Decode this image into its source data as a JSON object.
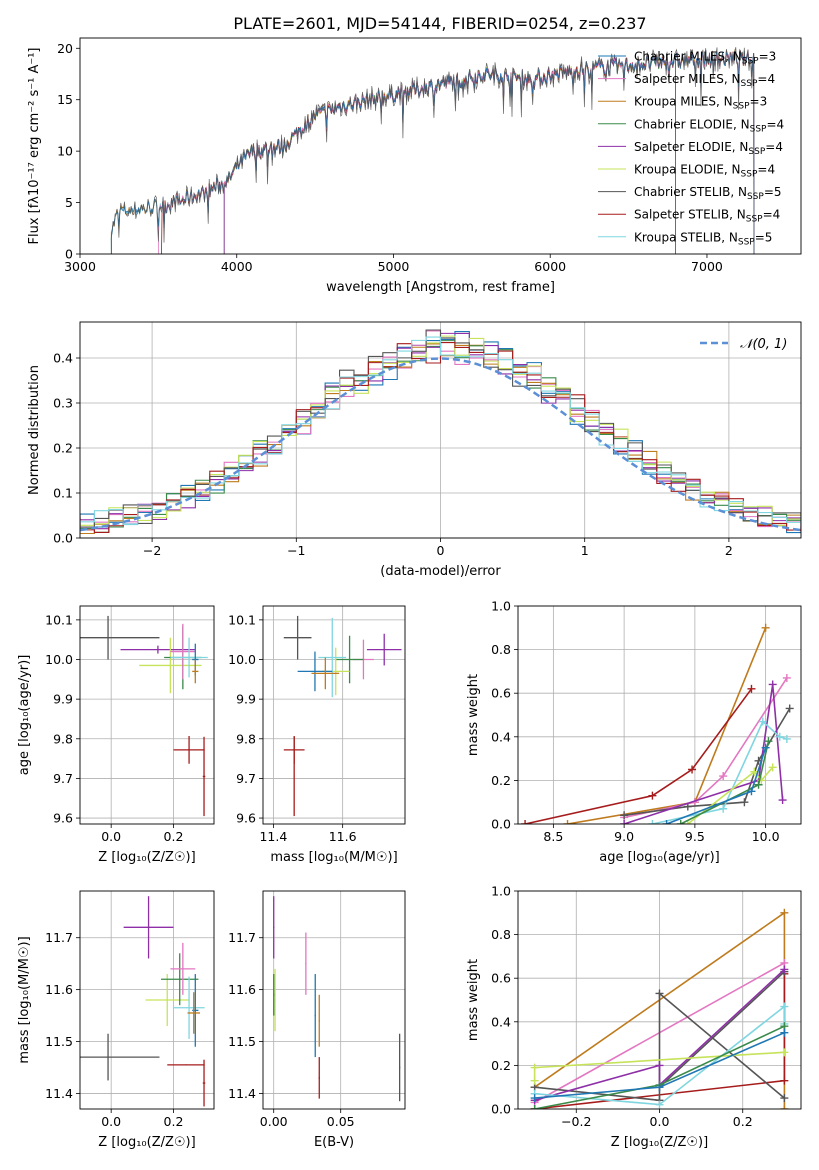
{
  "figure_title": "PLATE=2601, MJD=54144, FIBERID=0254, z=0.237",
  "colors": {
    "CM": "#1f77b4",
    "SM": "#e377c2",
    "KM": "#bf7b1d",
    "CE": "#3a8a4a",
    "SE": "#8e2fa8",
    "KE": "#c6e35a",
    "CS": "#555555",
    "SS": "#a61c1c",
    "KS": "#7fd6e0",
    "normal": "#5b8fd6",
    "grid": "#b0b0b0",
    "text": "#000000"
  },
  "legend_models": [
    {
      "key": "CM",
      "imf": "Chabrier",
      "lib": "MILES",
      "nssp": "3"
    },
    {
      "key": "SM",
      "imf": "Salpeter",
      "lib": "MILES",
      "nssp": "4"
    },
    {
      "key": "KM",
      "imf": "Kroupa",
      "lib": "MILES",
      "nssp": "3"
    },
    {
      "key": "CE",
      "imf": "Chabrier",
      "lib": "ELODIE",
      "nssp": "4"
    },
    {
      "key": "SE",
      "imf": "Salpeter",
      "lib": "ELODIE",
      "nssp": "4"
    },
    {
      "key": "KE",
      "imf": "Kroupa",
      "lib": "ELODIE",
      "nssp": "4"
    },
    {
      "key": "CS",
      "imf": "Chabrier",
      "lib": "STELIB",
      "nssp": "5"
    },
    {
      "key": "SS",
      "imf": "Salpeter",
      "lib": "STELIB",
      "nssp": "4"
    },
    {
      "key": "KS",
      "imf": "Kroupa",
      "lib": "STELIB",
      "nssp": "5"
    }
  ],
  "chart_data": [
    {
      "id": "spectrum",
      "type": "line",
      "xlabel": "wavelength [Angstrom, rest frame]",
      "ylabel": "Flux [fλ10⁻¹⁷ erg cm⁻² s⁻¹ A⁻¹]",
      "xlim": [
        3000,
        7600
      ],
      "ylim": [
        0,
        21
      ],
      "xticks": [
        3000,
        4000,
        5000,
        6000,
        7000
      ],
      "yticks": [
        0,
        5,
        10,
        15,
        20
      ],
      "grid": false,
      "legend": "upper right",
      "series_start": {
        "CM": 3200,
        "SM": 3500,
        "KM": 3200,
        "CE": 3920,
        "SE": 3920,
        "KE": 3920,
        "CS": 3200,
        "SS": 3520,
        "KS": 3200
      },
      "series_end": {
        "CM": 7300,
        "SM": 7300,
        "KM": 7300,
        "CE": 6800,
        "SE": 6800,
        "KE": 6800,
        "CS": 7300,
        "SS": 7300,
        "KS": 7300
      },
      "continuum": [
        [
          3200,
          2.5
        ],
        [
          3250,
          4.2
        ],
        [
          3400,
          4.4
        ],
        [
          3600,
          5.0
        ],
        [
          3800,
          6.0
        ],
        [
          3950,
          7.2
        ],
        [
          4000,
          8.5
        ],
        [
          4100,
          10.0
        ],
        [
          4300,
          10.5
        ],
        [
          4500,
          13.5
        ],
        [
          4700,
          14.5
        ],
        [
          5000,
          15.5
        ],
        [
          5300,
          16.5
        ],
        [
          5600,
          17.5
        ],
        [
          5900,
          17.0
        ],
        [
          6200,
          18.0
        ],
        [
          6600,
          18.5
        ],
        [
          7000,
          19.0
        ],
        [
          7300,
          19.0
        ]
      ]
    },
    {
      "id": "residuals",
      "type": "histogram",
      "xlabel": "(data-model)/error",
      "ylabel": "Normed distribution",
      "xlim": [
        -2.5,
        2.5
      ],
      "ylim": [
        0,
        0.48
      ],
      "xticks": [
        -2,
        -1,
        0,
        1,
        2
      ],
      "yticks": [
        0.0,
        0.1,
        0.2,
        0.3,
        0.4
      ],
      "grid": true,
      "legend": "upper right",
      "reference_curve": {
        "name": "𝒩(0, 1)",
        "type": "gaussian",
        "mean": 0,
        "sigma": 1
      },
      "bin_width": 0.1
    },
    {
      "id": "age_vs_Z",
      "type": "errorbar",
      "xlabel": "Z [log₁₀(Z/Z☉)]",
      "ylabel": "age  [log₁₀(age/yr)]",
      "xlim": [
        -0.1,
        0.33
      ],
      "ylim": [
        9.585,
        10.135
      ],
      "xticks": [
        0.0,
        0.2
      ],
      "yticks": [
        9.6,
        9.7,
        9.8,
        9.9,
        10.0,
        10.1
      ],
      "grid": true,
      "points": [
        {
          "key": "CS",
          "x": -0.01,
          "y": 10.055,
          "xerr": 0.165,
          "yerr": 0.055
        },
        {
          "key": "SE",
          "x": 0.15,
          "y": 10.025,
          "xerr": 0.12,
          "yerr": 0.01
        },
        {
          "key": "KE",
          "x": 0.19,
          "y": 9.985,
          "xerr": 0.1,
          "yerr": 0.07
        },
        {
          "key": "CE",
          "x": 0.23,
          "y": 10.005,
          "xerr": 0.06,
          "yerr": 0.08
        },
        {
          "key": "SM",
          "x": 0.23,
          "y": 10.02,
          "xerr": 0.04,
          "yerr": 0.07
        },
        {
          "key": "KS",
          "x": 0.25,
          "y": 10.005,
          "xerr": 0.06,
          "yerr": 0.05
        },
        {
          "key": "CM",
          "x": 0.27,
          "y": 10.0,
          "xerr": 0.01,
          "yerr": 0.04
        },
        {
          "key": "KM",
          "x": 0.27,
          "y": 9.97,
          "xerr": 0.01,
          "yerr": 0.03
        },
        {
          "key": "SS",
          "x": 0.25,
          "y": 9.772,
          "xerr": 0.05,
          "yerr": 0.035
        },
        {
          "key": "SS",
          "x": 0.298,
          "y": 9.705,
          "xerr": 0.004,
          "yerr": 0.1
        }
      ]
    },
    {
      "id": "age_vs_mass",
      "type": "errorbar",
      "xlabel": "mass [log₁₀(M/M☉)]",
      "ylabel": "",
      "xlim": [
        11.37,
        11.78
      ],
      "ylim": [
        9.585,
        10.135
      ],
      "xticks": [
        11.4,
        11.6
      ],
      "yticks": [
        9.6,
        9.7,
        9.8,
        9.9,
        10.0,
        10.1
      ],
      "grid": true,
      "points": [
        {
          "key": "CS",
          "x": 11.47,
          "y": 10.055,
          "xerr": 0.04,
          "yerr": 0.055
        },
        {
          "key": "SE",
          "x": 11.72,
          "y": 10.025,
          "xerr": 0.05,
          "yerr": 0.04
        },
        {
          "key": "SM",
          "x": 11.66,
          "y": 10.0,
          "xerr": 0.03,
          "yerr": 0.05
        },
        {
          "key": "CE",
          "x": 11.62,
          "y": 10.0,
          "xerr": 0.04,
          "yerr": 0.06
        },
        {
          "key": "KE",
          "x": 11.58,
          "y": 9.97,
          "xerr": 0.04,
          "yerr": 0.06
        },
        {
          "key": "KS",
          "x": 11.57,
          "y": 10.005,
          "xerr": 0.04,
          "yerr": 0.1
        },
        {
          "key": "CM",
          "x": 11.52,
          "y": 9.97,
          "xerr": 0.05,
          "yerr": 0.05
        },
        {
          "key": "KM",
          "x": 11.55,
          "y": 9.965,
          "xerr": 0.04,
          "yerr": 0.04
        },
        {
          "key": "SS",
          "x": 11.46,
          "y": 9.772,
          "xerr": 0.03,
          "yerr": 0.035
        },
        {
          "key": "SS",
          "x": 11.46,
          "y": 9.705,
          "xerr": 0.001,
          "yerr": 0.1
        }
      ]
    },
    {
      "id": "weight_vs_age",
      "type": "line",
      "xlabel": "age  [log₁₀(age/yr)]",
      "ylabel": "mass weight",
      "xlim": [
        8.25,
        10.25
      ],
      "ylim": [
        0,
        1.0
      ],
      "xticks": [
        8.5,
        9.0,
        9.5,
        10.0
      ],
      "yticks": [
        0.0,
        0.2,
        0.4,
        0.6,
        0.8,
        1.0
      ],
      "grid": true,
      "series": [
        {
          "key": "KM",
          "x": [
            8.6,
            9.5,
            10.0
          ],
          "y": [
            0.0,
            0.1,
            0.9
          ]
        },
        {
          "key": "SS",
          "x": [
            8.3,
            9.2,
            9.48,
            9.9
          ],
          "y": [
            0.0,
            0.13,
            0.25,
            0.62
          ]
        },
        {
          "key": "SM",
          "x": [
            9.0,
            9.5,
            9.7,
            10.15
          ],
          "y": [
            0.03,
            0.1,
            0.22,
            0.67
          ]
        },
        {
          "key": "CS",
          "x": [
            9.0,
            9.45,
            9.85,
            9.95,
            10.17
          ],
          "y": [
            0.04,
            0.08,
            0.1,
            0.29,
            0.53
          ]
        },
        {
          "key": "SE",
          "x": [
            9.0,
            9.95,
            10.05,
            10.12
          ],
          "y": [
            0.0,
            0.2,
            0.64,
            0.11
          ]
        },
        {
          "key": "KS",
          "x": [
            9.2,
            9.7,
            9.98,
            10.1,
            10.15
          ],
          "y": [
            0.0,
            0.07,
            0.47,
            0.4,
            0.39
          ]
        },
        {
          "key": "KE",
          "x": [
            9.45,
            9.92,
            9.97,
            10.05
          ],
          "y": [
            0.0,
            0.24,
            0.2,
            0.26
          ]
        },
        {
          "key": "CE",
          "x": [
            9.4,
            9.95,
            10.02
          ],
          "y": [
            0.0,
            0.18,
            0.38
          ]
        },
        {
          "key": "CM",
          "x": [
            9.3,
            9.9,
            10.0
          ],
          "y": [
            0.0,
            0.15,
            0.35
          ]
        }
      ]
    },
    {
      "id": "mass_vs_Z",
      "type": "errorbar",
      "xlabel": "Z [log₁₀(Z/Z☉)]",
      "ylabel": "mass [log₁₀(M/M☉)]",
      "xlim": [
        -0.1,
        0.33
      ],
      "ylim": [
        11.37,
        11.79
      ],
      "xticks": [
        0.0,
        0.2
      ],
      "yticks": [
        11.4,
        11.5,
        11.6,
        11.7
      ],
      "grid": true,
      "points": [
        {
          "key": "CS",
          "x": -0.01,
          "y": 11.47,
          "xerr": 0.165,
          "yerr": 0.045
        },
        {
          "key": "SE",
          "x": 0.12,
          "y": 11.72,
          "xerr": 0.08,
          "yerr": 0.06
        },
        {
          "key": "KE",
          "x": 0.18,
          "y": 11.58,
          "xerr": 0.07,
          "yerr": 0.05
        },
        {
          "key": "CE",
          "x": 0.22,
          "y": 11.62,
          "xerr": 0.06,
          "yerr": 0.05
        },
        {
          "key": "SM",
          "x": 0.23,
          "y": 11.64,
          "xerr": 0.04,
          "yerr": 0.05
        },
        {
          "key": "KS",
          "x": 0.25,
          "y": 11.565,
          "xerr": 0.05,
          "yerr": 0.06
        },
        {
          "key": "CM",
          "x": 0.27,
          "y": 11.56,
          "xerr": 0.01,
          "yerr": 0.07
        },
        {
          "key": "KM",
          "x": 0.265,
          "y": 11.555,
          "xerr": 0.02,
          "yerr": 0.04
        },
        {
          "key": "SS",
          "x": 0.24,
          "y": 11.455,
          "xerr": 0.06,
          "yerr": 0.001
        },
        {
          "key": "SS",
          "x": 0.298,
          "y": 11.42,
          "xerr": 0.004,
          "yerr": 0.045
        }
      ]
    },
    {
      "id": "mass_vs_EBV",
      "type": "errorbar",
      "xlabel": "E(B-V)",
      "ylabel": "",
      "xlim": [
        -0.008,
        0.098
      ],
      "ylim": [
        11.37,
        11.79
      ],
      "xticks": [
        0.0,
        0.05
      ],
      "yticks": [
        11.4,
        11.5,
        11.6,
        11.7
      ],
      "grid": true,
      "points": [
        {
          "key": "SE",
          "x": 0.0,
          "y": 11.72,
          "xerr": 0.0005,
          "yerr": 0.06
        },
        {
          "key": "KE",
          "x": 0.001,
          "y": 11.58,
          "xerr": 0.0005,
          "yerr": 0.06
        },
        {
          "key": "CE",
          "x": 0.0,
          "y": 11.59,
          "xerr": 0.0005,
          "yerr": 0.04
        },
        {
          "key": "SM",
          "x": 0.024,
          "y": 11.65,
          "xerr": 0.0005,
          "yerr": 0.06
        },
        {
          "key": "CM",
          "x": 0.031,
          "y": 11.55,
          "xerr": 0.0005,
          "yerr": 0.08
        },
        {
          "key": "KM",
          "x": 0.034,
          "y": 11.54,
          "xerr": 0.0005,
          "yerr": 0.05
        },
        {
          "key": "SS",
          "x": 0.034,
          "y": 11.43,
          "xerr": 0.0005,
          "yerr": 0.04
        },
        {
          "key": "CS",
          "x": 0.094,
          "y": 11.45,
          "xerr": 0.0005,
          "yerr": 0.065
        }
      ]
    },
    {
      "id": "weight_vs_Z",
      "type": "line",
      "xlabel": "Z [log₁₀(Z/Z☉)]",
      "ylabel": "mass weight",
      "xlim": [
        -0.34,
        0.34
      ],
      "ylim": [
        0,
        1.0
      ],
      "xticks": [
        -0.2,
        0.0,
        0.2
      ],
      "yticks": [
        0.0,
        0.2,
        0.4,
        0.6,
        0.8,
        1.0
      ],
      "grid": true,
      "series": [
        {
          "key": "KM",
          "x": [
            -0.3,
            0.3,
            0.3
          ],
          "y": [
            0.1,
            0.9,
            0.0
          ]
        },
        {
          "key": "SM",
          "x": [
            -0.3,
            0.3
          ],
          "y": [
            0.03,
            0.67
          ]
        },
        {
          "key": "SS",
          "x": [
            -0.3,
            0.3,
            0.3
          ],
          "y": [
            0.0,
            0.13,
            0.62
          ]
        },
        {
          "key": "CS",
          "x": [
            -0.3,
            0.0,
            0.0,
            0.3
          ],
          "y": [
            0.1,
            0.04,
            0.53,
            0.05
          ]
        },
        {
          "key": "CS",
          "x": [
            0.0,
            0.3
          ],
          "y": [
            0.1,
            0.63
          ]
        },
        {
          "key": "SE",
          "x": [
            -0.3,
            0.0,
            0.0,
            0.3
          ],
          "y": [
            0.04,
            0.2,
            0.11,
            0.64
          ]
        },
        {
          "key": "KS",
          "x": [
            -0.3,
            0.0,
            0.3,
            0.3
          ],
          "y": [
            0.07,
            0.02,
            0.47,
            0.39
          ]
        },
        {
          "key": "KE",
          "x": [
            -0.3,
            -0.3,
            0.3
          ],
          "y": [
            0.13,
            0.19,
            0.26
          ]
        },
        {
          "key": "CE",
          "x": [
            -0.3,
            0.0,
            0.3
          ],
          "y": [
            0.0,
            0.11,
            0.38
          ]
        },
        {
          "key": "CM",
          "x": [
            -0.3,
            0.0,
            0.3
          ],
          "y": [
            0.05,
            0.1,
            0.35
          ]
        }
      ]
    }
  ]
}
